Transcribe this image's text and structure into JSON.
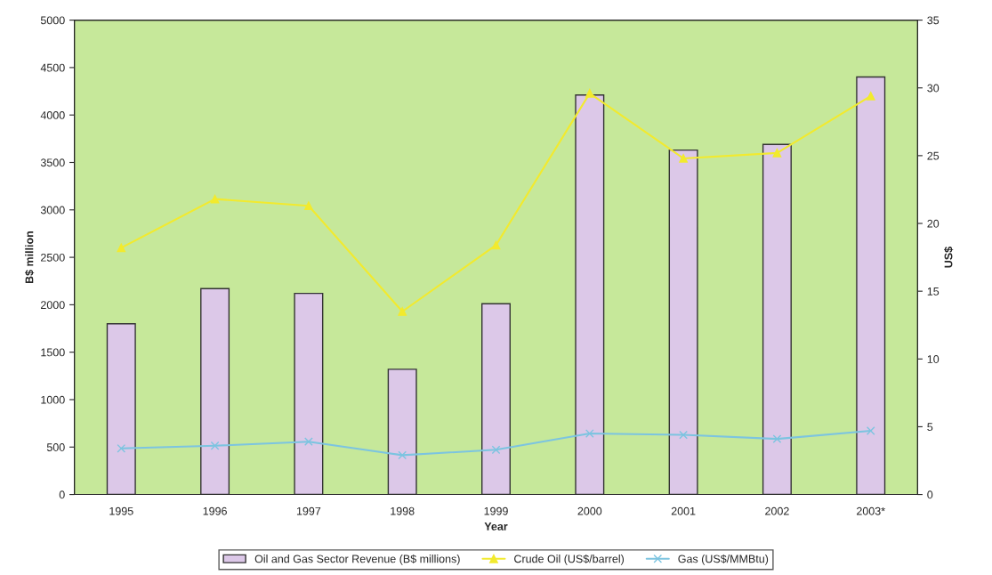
{
  "chart_data": {
    "type": "bar",
    "xlabel": "Year",
    "ylabel": "B$ million",
    "y2label": "US$",
    "categories": [
      "1995",
      "1996",
      "1997",
      "1998",
      "1999",
      "2000",
      "2001",
      "2002",
      "2003*"
    ],
    "series": [
      {
        "name": "Oil and Gas Sector Revenue (B$ millions)",
        "color": "#dcc8e8",
        "values": [
          1800,
          2170,
          2120,
          1320,
          2010,
          4210,
          3630,
          3690,
          4400
        ]
      },
      {
        "name": "Crude Oil (US$/barrel)",
        "type": "line",
        "axis": "y2",
        "color": "#f2ea2e",
        "marker": "triangle",
        "values": [
          18.2,
          21.8,
          21.3,
          13.5,
          18.4,
          29.6,
          24.8,
          25.2,
          29.4
        ]
      },
      {
        "name": "Gas (US$/MMBtu)",
        "type": "line",
        "axis": "y2",
        "color": "#7cc4e0",
        "marker": "cross",
        "values": [
          3.4,
          3.6,
          3.9,
          2.9,
          3.3,
          4.5,
          4.4,
          4.1,
          4.7
        ]
      }
    ],
    "ylim": [
      0,
      5000
    ],
    "yticks": [
      0,
      500,
      1000,
      1500,
      2000,
      2500,
      3000,
      3500,
      4000,
      4500,
      5000
    ],
    "y2lim": [
      0,
      35
    ],
    "y2ticks": [
      0,
      5,
      10,
      15,
      20,
      25,
      30,
      35
    ],
    "grid": false,
    "legend": "bottom"
  }
}
